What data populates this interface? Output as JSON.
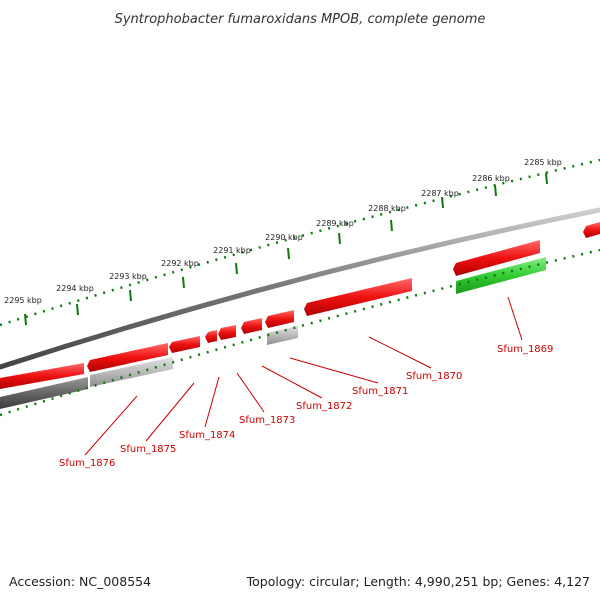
{
  "title": "Syntrophobacter fumaroxidans MPOB, complete genome",
  "footer": {
    "accession": "Accession: NC_008554",
    "summary": "Topology: circular; Length: 4,990,251 bp; Genes: 4,127"
  },
  "colors": {
    "forward_gene": "#ee1111",
    "rna_gene": "#33cc33",
    "gray_dark": "#666666",
    "gray_light": "#bbbbbb",
    "tick": "#117711",
    "backbone": "#777777",
    "label": "#cc0000"
  },
  "ticks": [
    {
      "label": "2285 kbp"
    },
    {
      "label": "2286 kbp"
    },
    {
      "label": "2287 kbp"
    },
    {
      "label": "2288 kbp"
    },
    {
      "label": "2289 kbp"
    },
    {
      "label": "2290 kbp"
    },
    {
      "label": "2291 kbp"
    },
    {
      "label": "2292 kbp"
    },
    {
      "label": "2293 kbp"
    },
    {
      "label": "2294 kbp"
    },
    {
      "label": "2295 kbp"
    }
  ],
  "genes": [
    {
      "label": "Sfum_1869"
    },
    {
      "label": "Sfum_1870"
    },
    {
      "label": "Sfum_1871"
    },
    {
      "label": "Sfum_1872"
    },
    {
      "label": "Sfum_1873"
    },
    {
      "label": "Sfum_1874"
    },
    {
      "label": "Sfum_1875"
    },
    {
      "label": "Sfum_1876"
    }
  ]
}
